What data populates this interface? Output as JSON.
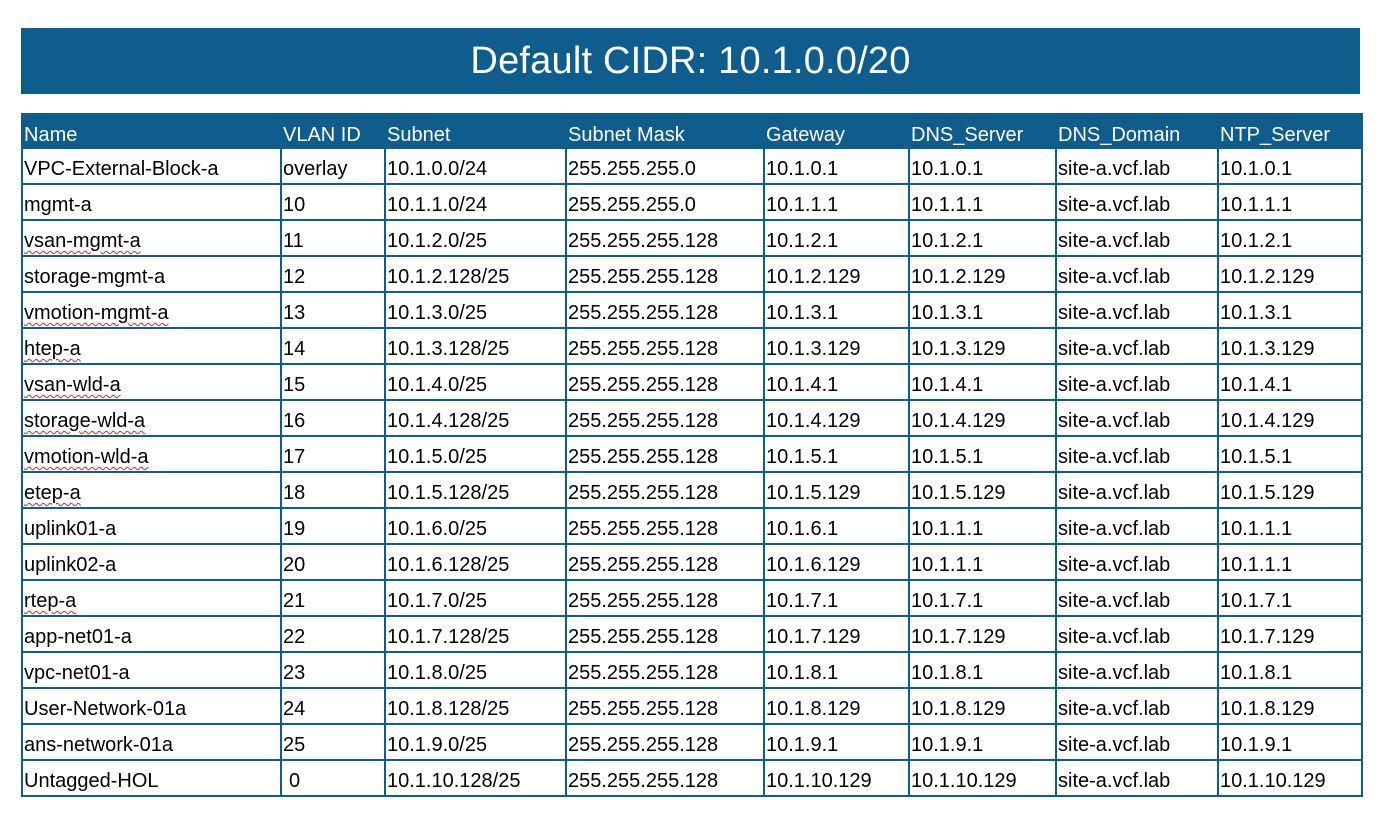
{
  "title": "Default CIDR: 10.1.0.0/20",
  "colors": {
    "header_bg": "#0e5d8c",
    "header_text": "#ffffff",
    "spellcheck": "#d0302a"
  },
  "columns": [
    "Name",
    "VLAN ID",
    "Subnet",
    "Subnet Mask",
    "Gateway",
    "DNS_Server",
    "DNS_Domain",
    "NTP_Server"
  ],
  "rows": [
    [
      "VPC-External-Block-a",
      "overlay",
      "10.1.0.0/24",
      "255.255.255.0",
      "10.1.0.1",
      "10.1.0.1",
      "site-a.vcf.lab",
      "10.1.0.1"
    ],
    [
      "mgmt-a",
      "10",
      "10.1.1.0/24",
      "255.255.255.0",
      "10.1.1.1",
      "10.1.1.1",
      "site-a.vcf.lab",
      "10.1.1.1"
    ],
    [
      "vsan-mgmt-a",
      "11",
      "10.1.2.0/25",
      "255.255.255.128",
      "10.1.2.1",
      "10.1.2.1",
      "site-a.vcf.lab",
      "10.1.2.1"
    ],
    [
      "storage-mgmt-a",
      "12",
      "10.1.2.128/25",
      "255.255.255.128",
      "10.1.2.129",
      "10.1.2.129",
      "site-a.vcf.lab",
      "10.1.2.129"
    ],
    [
      "vmotion-mgmt-a",
      "13",
      "10.1.3.0/25",
      "255.255.255.128",
      "10.1.3.1",
      "10.1.3.1",
      "site-a.vcf.lab",
      "10.1.3.1"
    ],
    [
      "htep-a",
      "14",
      "10.1.3.128/25",
      "255.255.255.128",
      "10.1.3.129",
      "10.1.3.129",
      "site-a.vcf.lab",
      "10.1.3.129"
    ],
    [
      "vsan-wld-a",
      "15",
      "10.1.4.0/25",
      "255.255.255.128",
      "10.1.4.1",
      "10.1.4.1",
      "site-a.vcf.lab",
      "10.1.4.1"
    ],
    [
      "storage-wld-a",
      "16",
      "10.1.4.128/25",
      "255.255.255.128",
      "10.1.4.129",
      "10.1.4.129",
      "site-a.vcf.lab",
      "10.1.4.129"
    ],
    [
      "vmotion-wld-a",
      "17",
      "10.1.5.0/25",
      "255.255.255.128",
      "10.1.5.1",
      "10.1.5.1",
      "site-a.vcf.lab",
      "10.1.5.1"
    ],
    [
      "etep-a",
      "18",
      "10.1.5.128/25",
      "255.255.255.128",
      "10.1.5.129",
      "10.1.5.129",
      "site-a.vcf.lab",
      "10.1.5.129"
    ],
    [
      "uplink01-a",
      "19",
      "10.1.6.0/25",
      "255.255.255.128",
      "10.1.6.1",
      "10.1.1.1",
      "site-a.vcf.lab",
      "10.1.1.1"
    ],
    [
      "uplink02-a",
      "20",
      "10.1.6.128/25",
      "255.255.255.128",
      "10.1.6.129",
      "10.1.1.1",
      "site-a.vcf.lab",
      "10.1.1.1"
    ],
    [
      "rtep-a",
      "21",
      "10.1.7.0/25",
      "255.255.255.128",
      "10.1.7.1",
      "10.1.7.1",
      "site-a.vcf.lab",
      "10.1.7.1"
    ],
    [
      "app-net01-a",
      "22",
      "10.1.7.128/25",
      "255.255.255.128",
      "10.1.7.129",
      "10.1.7.129",
      "site-a.vcf.lab",
      "10.1.7.129"
    ],
    [
      "vpc-net01-a",
      "23",
      "10.1.8.0/25",
      "255.255.255.128",
      "10.1.8.1",
      "10.1.8.1",
      "site-a.vcf.lab",
      "10.1.8.1"
    ],
    [
      "User-Network-01a",
      "24",
      "10.1.8.128/25",
      "255.255.255.128",
      "10.1.8.129",
      "10.1.8.129",
      "site-a.vcf.lab",
      "10.1.8.129"
    ],
    [
      "ans-network-01a",
      "25",
      "10.1.9.0/25",
      "255.255.255.128",
      "10.1.9.1",
      "10.1.9.1",
      "site-a.vcf.lab",
      "10.1.9.1"
    ],
    [
      "Untagged-HOL",
      "0",
      "10.1.10.128/25",
      "255.255.255.128",
      "10.1.10.129",
      "10.1.10.129",
      "site-a.vcf.lab",
      "10.1.10.129"
    ]
  ],
  "spellcheck_flagged_names": [
    "vsan-mgmt-a",
    "vmotion-mgmt-a",
    "htep-a",
    "vsan-wld-a",
    "storage-wld-a",
    "vmotion-wld-a",
    "etep-a",
    "rtep-a"
  ]
}
